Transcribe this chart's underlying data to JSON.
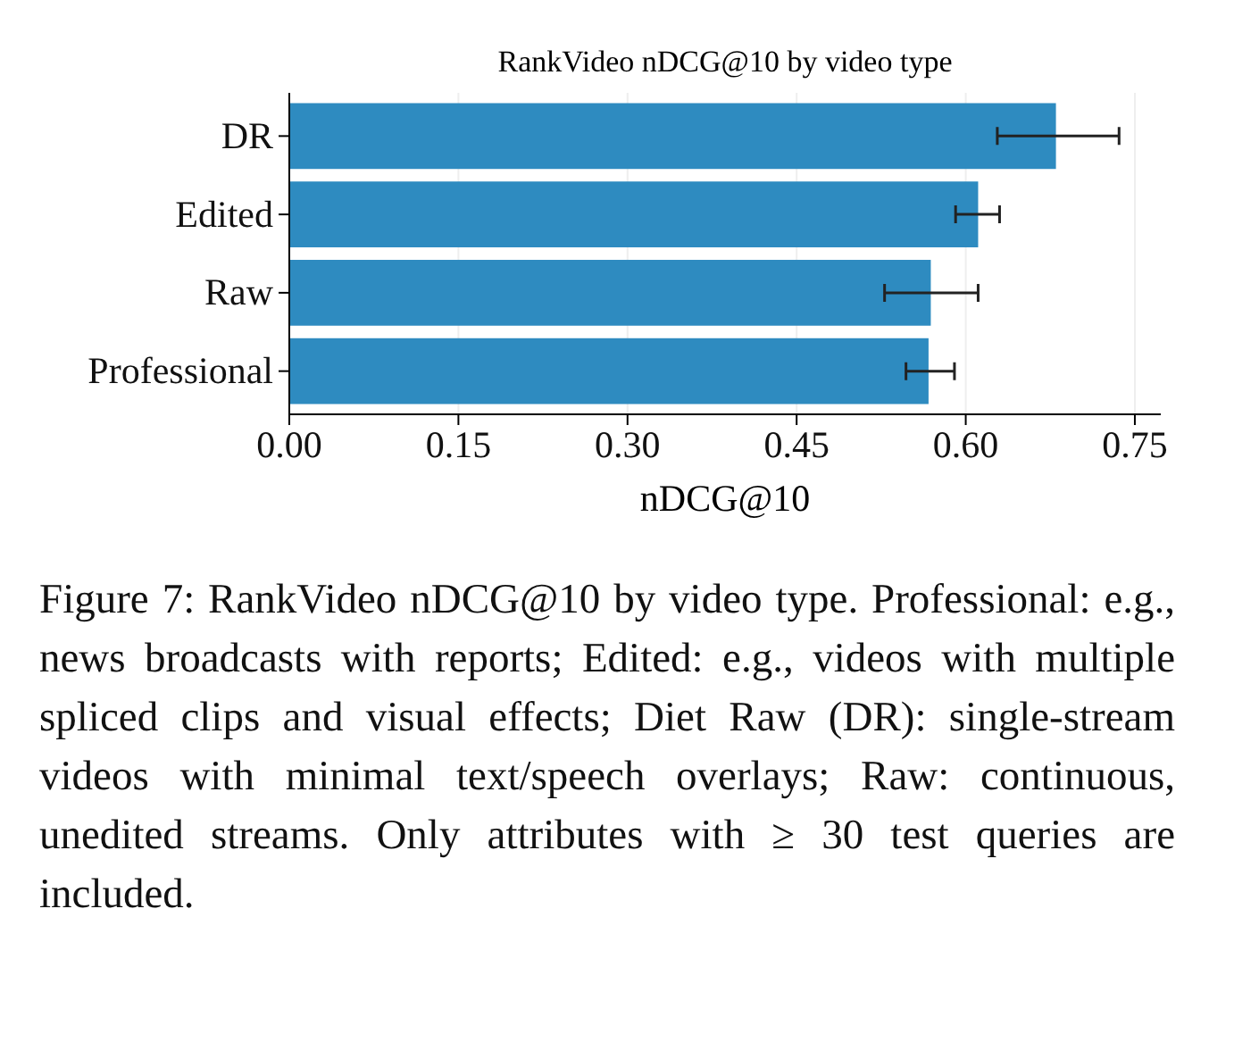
{
  "chart_data": {
    "type": "bar",
    "orientation": "horizontal",
    "title": "RankVideo nDCG@10 by video type",
    "xlabel": "nDCG@10",
    "categories": [
      "DR",
      "Edited",
      "Raw",
      "Professional"
    ],
    "values": [
      0.68,
      0.611,
      0.569,
      0.567
    ],
    "errors": [
      [
        0.628,
        0.736
      ],
      [
        0.591,
        0.63
      ],
      [
        0.528,
        0.611
      ],
      [
        0.547,
        0.59
      ]
    ],
    "color": "#2e8bc0",
    "xlim": [
      0,
      0.773
    ],
    "xticks": [
      {
        "value": 0,
        "label": "0.00"
      },
      {
        "value": 0.15,
        "label": "0.15"
      },
      {
        "value": 0.3,
        "label": "0.30"
      },
      {
        "value": 0.45,
        "label": "0.45"
      },
      {
        "value": 0.6,
        "label": "0.60"
      },
      {
        "value": 0.75,
        "label": "0.75"
      }
    ],
    "grid": "x",
    "annotations": [
      "Figure 7: RankVideo nDCG@10 by video type. Professional: e.g., news broadcasts with reports; Edited: e.g., videos with multiple spliced clips and visual effects; Diet Raw (DR): single-stream videos with minimal text/speech overlays; Raw: continuous, unedited streams. Only attributes with ≥ 30 test queries are included."
    ]
  }
}
